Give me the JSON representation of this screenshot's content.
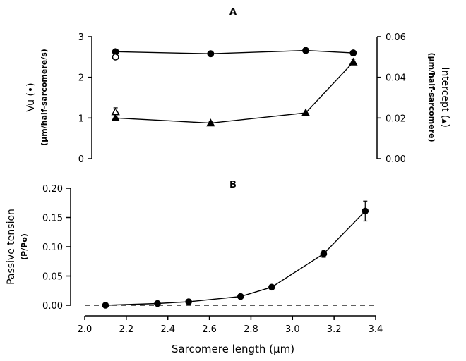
{
  "chart_data": [
    {
      "panel": "A",
      "type": "line",
      "x_ticks": [],
      "y_left": {
        "label": "Vu (•)",
        "sublabel": "(μm/half-sarcomere/s)",
        "ticks": [
          "0",
          "1",
          "2",
          "3"
        ],
        "lim": [
          0,
          3
        ]
      },
      "y_right": {
        "label": "Intercept (▴)",
        "sublabel": "(μm/half-sarcomere)",
        "ticks": [
          "0.00",
          "0.02",
          "0.04",
          "0.06"
        ],
        "lim": [
          0,
          0.06
        ]
      },
      "series": [
        {
          "axis": "left",
          "marker": "filled-circle",
          "x": [
            2.1,
            2.5,
            2.9,
            3.1
          ],
          "y": [
            2.63,
            2.58,
            2.66,
            2.6
          ]
        },
        {
          "axis": "left",
          "marker": "open-circle",
          "x": [
            2.1
          ],
          "y": [
            2.5
          ]
        },
        {
          "axis": "right",
          "marker": "filled-triangle",
          "x": [
            2.1,
            2.5,
            2.9,
            3.1
          ],
          "y": [
            0.02,
            0.0175,
            0.0225,
            0.0475
          ],
          "err": [
            0.001,
            0.001,
            0,
            0.0015
          ]
        },
        {
          "axis": "right",
          "marker": "open-triangle",
          "x": [
            2.1
          ],
          "y": [
            0.023
          ],
          "err": [
            0.002
          ]
        }
      ]
    },
    {
      "panel": "B",
      "type": "line",
      "xlabel": "Sarcomere length (μm)",
      "xlim": [
        2.0,
        3.4
      ],
      "x_ticks": [
        "2.0",
        "2.2",
        "2.4",
        "2.6",
        "2.8",
        "3.0",
        "3.2",
        "3.4"
      ],
      "ylabel": "Passive tension",
      "ysublabel": "(P/Po)",
      "ylim": [
        0,
        0.2
      ],
      "y_ticks": [
        "0.00",
        "0.05",
        "0.10",
        "0.15",
        "0.20"
      ],
      "series": [
        {
          "marker": "filled-circle",
          "x": [
            2.1,
            2.35,
            2.5,
            2.75,
            2.9,
            3.15,
            3.35
          ],
          "y": [
            0.0,
            0.003,
            0.006,
            0.015,
            0.031,
            0.088,
            0.161
          ],
          "err": [
            0,
            0,
            0,
            0,
            0,
            0.006,
            0.017
          ]
        }
      ],
      "reference_line": {
        "y": 0,
        "style": "dashed"
      }
    }
  ]
}
